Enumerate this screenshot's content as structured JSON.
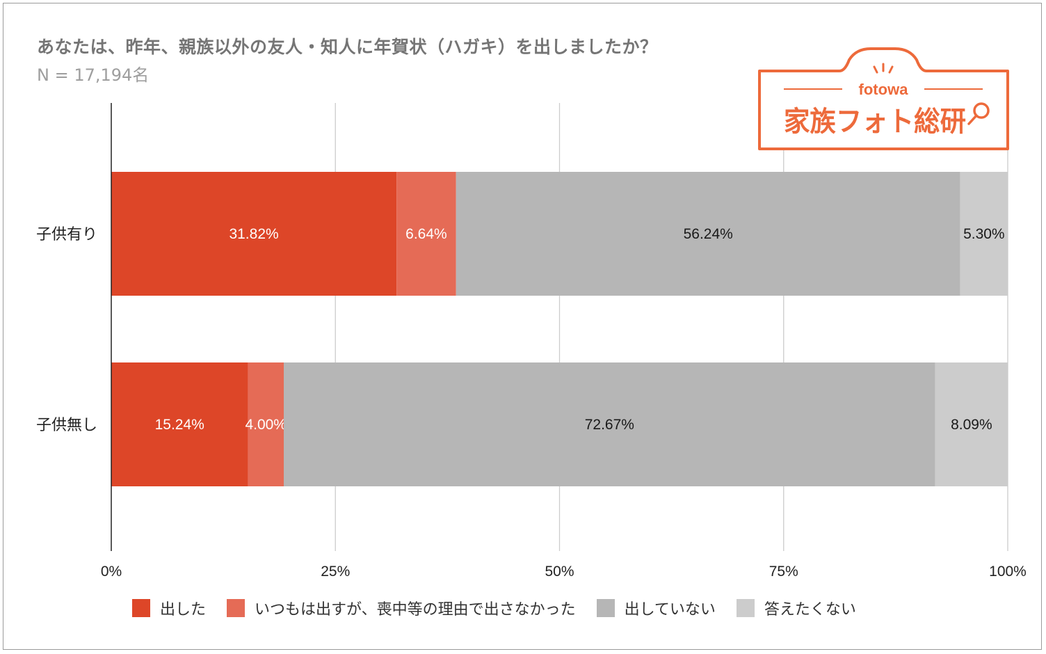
{
  "title": "あなたは、昨年、親族以外の友人・知人に年賀状（ハガキ）を出しましたか？",
  "subtitle": "N = 17,194名",
  "logo": {
    "brand": "fotowa",
    "name": "家族フォト総研",
    "color": "#ED6A3B"
  },
  "chart_data": {
    "type": "bar",
    "orientation": "horizontal",
    "stacked": "percent",
    "title": "あなたは、昨年、親族以外の友人・知人に年賀状（ハガキ）を出しましたか？",
    "subtitle": "N = 17,194名",
    "categories": [
      "子供有り",
      "子供無し"
    ],
    "series": [
      {
        "name": "出した",
        "color": "#DD4628",
        "values": [
          31.82,
          15.24
        ],
        "labels": [
          "31.82%",
          "15.24%"
        ],
        "label_color": "#ffffff"
      },
      {
        "name": "いつもは出すが、喪中等の理由で出さなかった",
        "color": "#E56B56",
        "values": [
          6.64,
          4.0
        ],
        "labels": [
          "6.64%",
          "4.00%"
        ],
        "label_color": "#ffffff"
      },
      {
        "name": "出していない",
        "color": "#B6B6B6",
        "values": [
          56.24,
          72.67
        ],
        "labels": [
          "56.24%",
          "72.67%"
        ],
        "label_color": "#1a1a1a"
      },
      {
        "name": "答えたくない",
        "color": "#CCCCCC",
        "values": [
          5.3,
          8.09
        ],
        "labels": [
          "5.30%",
          "8.09%"
        ],
        "label_color": "#1a1a1a"
      }
    ],
    "xlim": [
      0,
      100
    ],
    "xticks": [
      "0%",
      "25%",
      "50%",
      "75%",
      "100%"
    ],
    "grid": true,
    "legend_position": "bottom"
  }
}
